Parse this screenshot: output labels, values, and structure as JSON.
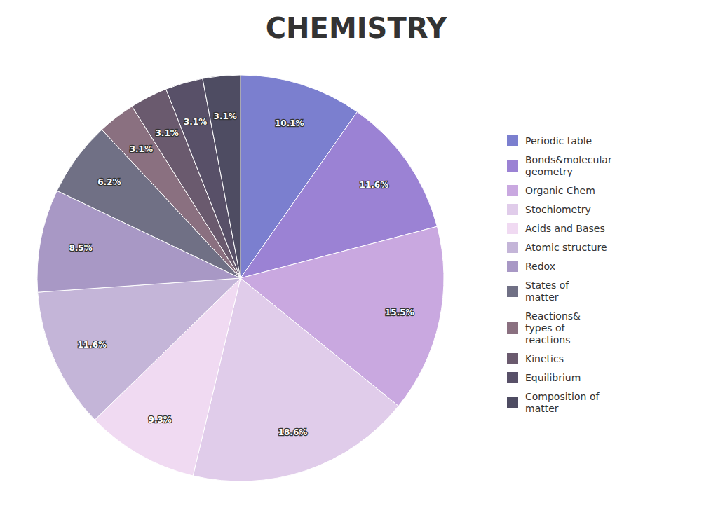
{
  "chart_data": {
    "type": "pie",
    "title": "CHEMISTRY",
    "categories": [
      "Periodic table",
      "Bonds&molecular\ngeometry",
      "Organic Chem",
      "Stochiometry",
      "Acids and Bases",
      "Atomic structure",
      "Redox",
      "States of\nmatter",
      "Reactions&\ntypes of\nreactions",
      "Kinetics",
      "Equilibrium",
      "Composition of\nmatter"
    ],
    "values": [
      10.1,
      11.6,
      15.5,
      18.6,
      9.3,
      11.6,
      8.5,
      6.2,
      3.1,
      3.1,
      3.1,
      3.1
    ],
    "value_labels": [
      "10.1%",
      "11.6%",
      "15.5%",
      "18.6%",
      "9.3%",
      "11.6%",
      "8.5%",
      "6.2%",
      "3.1%",
      "3.1%",
      "3.1%",
      "3.1%"
    ],
    "colors": [
      "#7b7fcf",
      "#9b82d4",
      "#c9a8e0",
      "#e0ccea",
      "#f0daf2",
      "#c4b5d8",
      "#a898c5",
      "#707085",
      "#8a7080",
      "#6a5a6e",
      "#585068",
      "#4e4c62"
    ],
    "data_labels": true,
    "legend": "right"
  }
}
